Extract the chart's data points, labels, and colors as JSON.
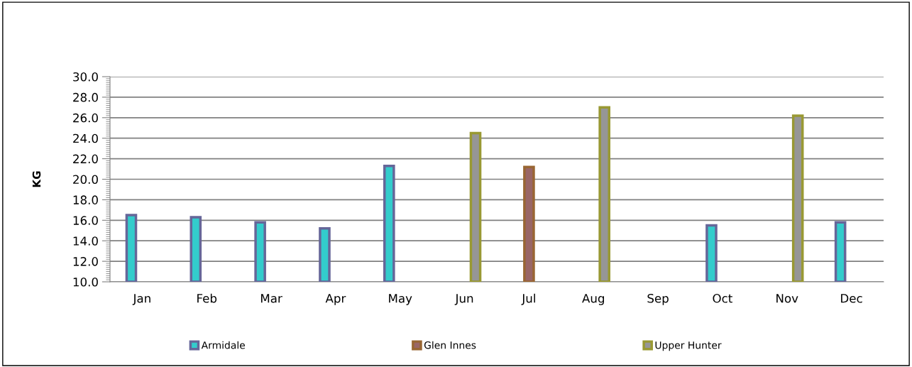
{
  "chart_data": {
    "type": "bar",
    "ylabel": "KG",
    "categories": [
      "Jan",
      "Feb",
      "Mar",
      "Apr",
      "May",
      "Jun",
      "Jul",
      "Aug",
      "Sep",
      "Oct",
      "Nov",
      "Dec"
    ],
    "series": [
      {
        "name": "Armidale",
        "color": "#33cccc",
        "values": [
          16.5,
          16.3,
          15.8,
          15.2,
          21.3,
          null,
          null,
          null,
          null,
          15.5,
          null,
          15.8
        ]
      },
      {
        "name": "Glen Innes",
        "color": "#996666",
        "values": [
          null,
          null,
          null,
          null,
          null,
          null,
          21.2,
          null,
          null,
          null,
          null,
          null
        ]
      },
      {
        "name": "Upper Hunter",
        "color": "#969696",
        "values": [
          null,
          null,
          null,
          null,
          null,
          24.5,
          null,
          27.0,
          null,
          null,
          26.2,
          null
        ]
      }
    ],
    "ylim": [
      10,
      30
    ],
    "yticks": [
      {
        "value": 10,
        "label": "10.0"
      },
      {
        "value": 12,
        "label": "12.0"
      },
      {
        "value": 14,
        "label": "14.0"
      },
      {
        "value": 16,
        "label": "16.0"
      },
      {
        "value": 18,
        "label": "18.0"
      },
      {
        "value": 20,
        "label": "20.0"
      },
      {
        "value": 22,
        "label": "22.0"
      },
      {
        "value": 24,
        "label": "24.0"
      },
      {
        "value": 26,
        "label": "26.0"
      },
      {
        "value": 28,
        "label": "28.0"
      },
      {
        "value": 30,
        "label": "30.0"
      }
    ],
    "grid": "y",
    "legend": "bottom"
  }
}
